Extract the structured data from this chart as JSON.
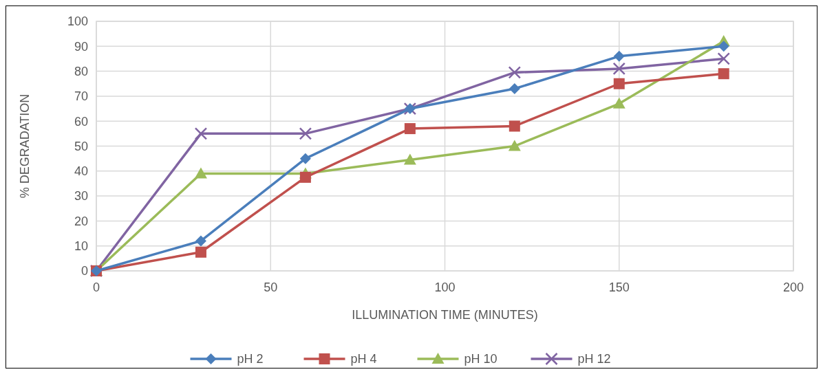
{
  "chart_data": {
    "type": "line",
    "xlabel": "ILLUMINATION TIME (MINUTES)",
    "ylabel": "% DEGRADATION",
    "x": [
      0,
      30,
      60,
      90,
      120,
      150,
      180
    ],
    "series": [
      {
        "name": "pH 2",
        "color": "#4a7ebb",
        "marker": "diamond",
        "values": [
          0,
          12,
          45,
          65,
          73,
          86,
          90
        ]
      },
      {
        "name": "pH 4",
        "color": "#c0504d",
        "marker": "square",
        "values": [
          0,
          7.5,
          37.5,
          57,
          58,
          75,
          79
        ]
      },
      {
        "name": "pH 10",
        "color": "#9bbb59",
        "marker": "triangle",
        "values": [
          0,
          39,
          39,
          44.5,
          50,
          67,
          92
        ]
      },
      {
        "name": "pH 12",
        "color": "#8064a2",
        "marker": "cross",
        "values": [
          0,
          55,
          55,
          65,
          79.5,
          81,
          85
        ]
      }
    ],
    "xlim": [
      0,
      200
    ],
    "xticks": [
      0,
      50,
      100,
      150,
      200
    ],
    "ylim": [
      0,
      100
    ],
    "yticks": [
      0,
      10,
      20,
      30,
      40,
      50,
      60,
      70,
      80,
      90,
      100
    ],
    "grid": true,
    "legend": "bottom",
    "line_style": "solid"
  }
}
